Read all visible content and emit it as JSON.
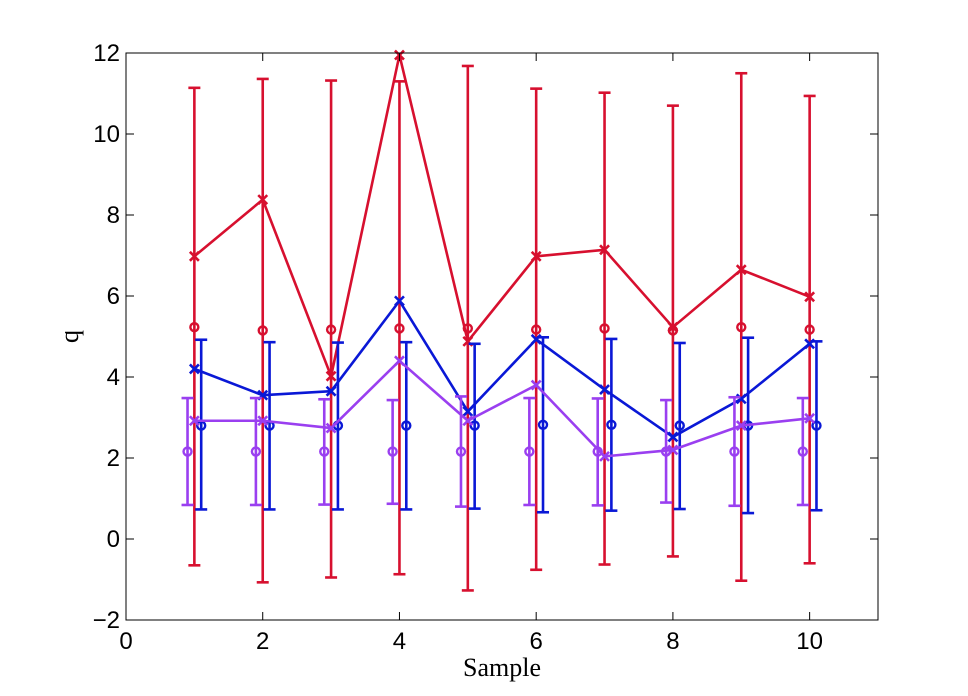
{
  "chart_data": {
    "type": "line",
    "title": "",
    "xlabel": "Sample",
    "ylabel": "q",
    "xlim": [
      0,
      11
    ],
    "ylim": [
      -2,
      12
    ],
    "xticks": [
      0,
      2,
      4,
      6,
      8,
      10
    ],
    "yticks": [
      -2,
      0,
      2,
      4,
      6,
      8,
      10,
      12
    ],
    "xtick_labels": [
      "0",
      "2",
      "4",
      "6",
      "8",
      "10"
    ],
    "ytick_labels": [
      "−2",
      "0",
      "2",
      "4",
      "6",
      "8",
      "10",
      "12"
    ],
    "grid": false,
    "legend": "none",
    "series": [
      {
        "name": "red",
        "color": "#d7102f",
        "line_x": [
          1,
          2,
          3,
          4,
          5,
          6,
          7,
          8,
          9,
          10
        ],
        "line_values": [
          6.98,
          8.38,
          4.02,
          11.95,
          4.88,
          6.98,
          7.14,
          5.23,
          6.65,
          5.98
        ],
        "point_x": [
          1,
          2,
          3,
          4,
          5,
          6,
          7,
          8,
          9,
          10
        ],
        "point_values": [
          5.23,
          5.15,
          5.17,
          5.2,
          5.2,
          5.17,
          5.2,
          5.15,
          5.23,
          5.17
        ],
        "err_lower": [
          -0.65,
          -1.07,
          -0.95,
          -0.87,
          -1.27,
          -0.76,
          -0.63,
          -0.43,
          -1.03,
          -0.6
        ],
        "err_upper": [
          11.14,
          11.36,
          11.32,
          11.3,
          11.68,
          11.12,
          11.02,
          10.7,
          11.5,
          10.94
        ]
      },
      {
        "name": "blue",
        "color": "#0a18d6",
        "line_x": [
          1,
          2,
          3,
          4,
          5,
          6,
          7,
          8,
          9,
          10
        ],
        "line_values": [
          4.2,
          3.55,
          3.65,
          5.88,
          3.15,
          4.93,
          3.69,
          2.52,
          3.46,
          4.82
        ],
        "point_x": [
          1.1,
          2.1,
          3.1,
          4.1,
          5.1,
          6.1,
          7.1,
          8.1,
          9.1,
          10.1
        ],
        "point_values": [
          2.8,
          2.8,
          2.8,
          2.8,
          2.8,
          2.82,
          2.82,
          2.8,
          2.8,
          2.8
        ],
        "err_lower": [
          0.73,
          0.73,
          0.73,
          0.73,
          0.75,
          0.66,
          0.7,
          0.74,
          0.64,
          0.71
        ],
        "err_upper": [
          4.92,
          4.86,
          4.85,
          4.86,
          4.82,
          4.98,
          4.94,
          4.84,
          4.97,
          4.88
        ]
      },
      {
        "name": "purple",
        "color": "#9a3ff0",
        "line_x": [
          1,
          2,
          3,
          4,
          5,
          6,
          7,
          8,
          9,
          10
        ],
        "line_values": [
          2.92,
          2.92,
          2.74,
          4.4,
          2.92,
          3.8,
          2.04,
          2.2,
          2.8,
          2.98
        ],
        "point_x": [
          0.9,
          1.9,
          2.9,
          3.9,
          4.9,
          5.9,
          6.9,
          7.9,
          8.9,
          9.9
        ],
        "point_values": [
          2.16,
          2.16,
          2.16,
          2.16,
          2.16,
          2.16,
          2.16,
          2.16,
          2.16,
          2.16
        ],
        "err_lower": [
          0.84,
          0.84,
          0.85,
          0.87,
          0.8,
          0.84,
          0.83,
          0.9,
          0.82,
          0.84
        ],
        "err_upper": [
          3.48,
          3.48,
          3.45,
          3.43,
          3.52,
          3.48,
          3.47,
          3.43,
          3.5,
          3.48
        ]
      }
    ]
  }
}
